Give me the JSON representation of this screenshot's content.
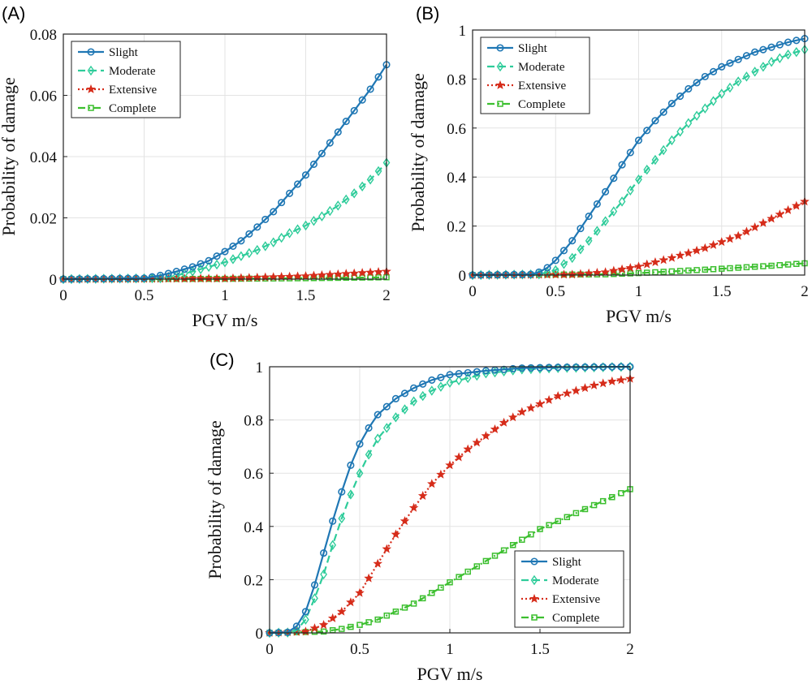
{
  "chart_data": [
    {
      "type": "line",
      "panel": "(A)",
      "xlabel": "PGV  m/s",
      "ylabel": "Probability of damage",
      "xlim": [
        0,
        2
      ],
      "ylim": [
        0,
        0.08
      ],
      "xticks": [
        "0",
        "0.5",
        "1",
        "1.5",
        "2"
      ],
      "yticks": [
        "0",
        "0.02",
        "0.04",
        "0.06",
        "0.08"
      ],
      "grid": true,
      "legend_position": "top-left",
      "series": [
        {
          "name": "Slight",
          "color": "#1f77b4",
          "marker": "circle",
          "line": "solid",
          "points": [
            [
              0,
              0
            ],
            [
              0.5,
              0.0003
            ],
            [
              0.6,
              0.0012
            ],
            [
              0.7,
              0.0025
            ],
            [
              0.8,
              0.004
            ],
            [
              0.9,
              0.006
            ],
            [
              1.0,
              0.009
            ],
            [
              1.1,
              0.0125
            ],
            [
              1.2,
              0.017
            ],
            [
              1.3,
              0.022
            ],
            [
              1.4,
              0.028
            ],
            [
              1.5,
              0.034
            ],
            [
              1.6,
              0.041
            ],
            [
              1.7,
              0.048
            ],
            [
              1.8,
              0.055
            ],
            [
              1.9,
              0.062
            ],
            [
              2.0,
              0.07
            ]
          ]
        },
        {
          "name": "Moderate",
          "color": "#2ecc9a",
          "marker": "diamond",
          "line": "dashed",
          "points": [
            [
              0,
              0
            ],
            [
              0.6,
              0.0003
            ],
            [
              0.7,
              0.0012
            ],
            [
              0.8,
              0.0025
            ],
            [
              0.9,
              0.004
            ],
            [
              1.0,
              0.0055
            ],
            [
              1.1,
              0.0075
            ],
            [
              1.2,
              0.0095
            ],
            [
              1.3,
              0.012
            ],
            [
              1.4,
              0.015
            ],
            [
              1.5,
              0.0175
            ],
            [
              1.6,
              0.0205
            ],
            [
              1.7,
              0.024
            ],
            [
              1.8,
              0.028
            ],
            [
              1.9,
              0.0325
            ],
            [
              2.0,
              0.038
            ]
          ]
        },
        {
          "name": "Extensive",
          "color": "#d62c1a",
          "marker": "star",
          "line": "dotted",
          "points": [
            [
              0,
              0
            ],
            [
              1.0,
              0.0002
            ],
            [
              1.5,
              0.001
            ],
            [
              2.0,
              0.0025
            ]
          ]
        },
        {
          "name": "Complete",
          "color": "#3cbf2f",
          "marker": "square",
          "line": "dashdot",
          "points": [
            [
              0,
              0
            ],
            [
              1.0,
              0.0001
            ],
            [
              1.5,
              0.0003
            ],
            [
              2.0,
              0.0006
            ]
          ]
        }
      ]
    },
    {
      "type": "line",
      "panel": "(B)",
      "xlabel": "PGV  m/s",
      "ylabel": "Probability of damage",
      "xlim": [
        0,
        2
      ],
      "ylim": [
        0,
        1
      ],
      "xticks": [
        "0",
        "0.5",
        "1",
        "1.5",
        "2"
      ],
      "yticks": [
        "0",
        "0.2",
        "0.4",
        "0.6",
        "0.8",
        "1"
      ],
      "grid": true,
      "legend_position": "top-left",
      "series": [
        {
          "name": "Slight",
          "color": "#1f77b4",
          "marker": "circle",
          "line": "solid",
          "points": [
            [
              0,
              0
            ],
            [
              0.35,
              0.003
            ],
            [
              0.4,
              0.012
            ],
            [
              0.45,
              0.03
            ],
            [
              0.5,
              0.06
            ],
            [
              0.55,
              0.1
            ],
            [
              0.6,
              0.14
            ],
            [
              0.65,
              0.19
            ],
            [
              0.7,
              0.24
            ],
            [
              0.75,
              0.29
            ],
            [
              0.8,
              0.34
            ],
            [
              0.9,
              0.45
            ],
            [
              1.0,
              0.55
            ],
            [
              1.1,
              0.63
            ],
            [
              1.2,
              0.7
            ],
            [
              1.3,
              0.76
            ],
            [
              1.4,
              0.81
            ],
            [
              1.5,
              0.85
            ],
            [
              1.6,
              0.88
            ],
            [
              1.7,
              0.91
            ],
            [
              1.8,
              0.93
            ],
            [
              1.9,
              0.95
            ],
            [
              2.0,
              0.965
            ]
          ]
        },
        {
          "name": "Moderate",
          "color": "#2ecc9a",
          "marker": "diamond",
          "line": "dashed",
          "points": [
            [
              0,
              0
            ],
            [
              0.4,
              0.003
            ],
            [
              0.5,
              0.02
            ],
            [
              0.6,
              0.07
            ],
            [
              0.7,
              0.14
            ],
            [
              0.8,
              0.22
            ],
            [
              0.9,
              0.3
            ],
            [
              1.0,
              0.39
            ],
            [
              1.1,
              0.47
            ],
            [
              1.2,
              0.55
            ],
            [
              1.3,
              0.62
            ],
            [
              1.4,
              0.68
            ],
            [
              1.5,
              0.74
            ],
            [
              1.6,
              0.79
            ],
            [
              1.7,
              0.83
            ],
            [
              1.8,
              0.87
            ],
            [
              1.9,
              0.9
            ],
            [
              2.0,
              0.92
            ]
          ]
        },
        {
          "name": "Extensive",
          "color": "#d62c1a",
          "marker": "star",
          "line": "dotted",
          "points": [
            [
              0,
              0
            ],
            [
              0.6,
              0.002
            ],
            [
              0.8,
              0.012
            ],
            [
              1.0,
              0.035
            ],
            [
              1.2,
              0.07
            ],
            [
              1.4,
              0.11
            ],
            [
              1.6,
              0.16
            ],
            [
              1.8,
              0.23
            ],
            [
              2.0,
              0.3
            ]
          ]
        },
        {
          "name": "Complete",
          "color": "#3cbf2f",
          "marker": "square",
          "line": "dashdot",
          "points": [
            [
              0,
              0
            ],
            [
              0.8,
              0.003
            ],
            [
              1.0,
              0.008
            ],
            [
              1.2,
              0.015
            ],
            [
              1.4,
              0.022
            ],
            [
              1.6,
              0.03
            ],
            [
              1.8,
              0.038
            ],
            [
              2.0,
              0.048
            ]
          ]
        }
      ]
    },
    {
      "type": "line",
      "panel": "(C)",
      "xlabel": "PGV  m/s",
      "ylabel": "Probability of damage",
      "xlim": [
        0,
        2
      ],
      "ylim": [
        0,
        1
      ],
      "xticks": [
        "0",
        "0.5",
        "1",
        "1.5",
        "2"
      ],
      "yticks": [
        "0",
        "0.2",
        "0.4",
        "0.6",
        "0.8",
        "1"
      ],
      "grid": true,
      "legend_position": "bottom-right",
      "series": [
        {
          "name": "Slight",
          "color": "#1f77b4",
          "marker": "circle",
          "line": "solid",
          "points": [
            [
              0,
              0
            ],
            [
              0.1,
              0.002
            ],
            [
              0.15,
              0.025
            ],
            [
              0.2,
              0.08
            ],
            [
              0.25,
              0.18
            ],
            [
              0.3,
              0.3
            ],
            [
              0.35,
              0.42
            ],
            [
              0.4,
              0.53
            ],
            [
              0.45,
              0.63
            ],
            [
              0.5,
              0.71
            ],
            [
              0.55,
              0.77
            ],
            [
              0.6,
              0.82
            ],
            [
              0.7,
              0.88
            ],
            [
              0.8,
              0.92
            ],
            [
              0.9,
              0.95
            ],
            [
              1.0,
              0.97
            ],
            [
              1.2,
              0.985
            ],
            [
              1.4,
              0.995
            ],
            [
              1.6,
              0.998
            ],
            [
              2.0,
              1.0
            ]
          ]
        },
        {
          "name": "Moderate",
          "color": "#2ecc9a",
          "marker": "diamond",
          "line": "dashed",
          "points": [
            [
              0,
              0
            ],
            [
              0.1,
              0.001
            ],
            [
              0.15,
              0.01
            ],
            [
              0.2,
              0.05
            ],
            [
              0.25,
              0.13
            ],
            [
              0.3,
              0.22
            ],
            [
              0.35,
              0.33
            ],
            [
              0.4,
              0.43
            ],
            [
              0.45,
              0.52
            ],
            [
              0.5,
              0.6
            ],
            [
              0.55,
              0.67
            ],
            [
              0.6,
              0.73
            ],
            [
              0.7,
              0.81
            ],
            [
              0.8,
              0.87
            ],
            [
              0.9,
              0.91
            ],
            [
              1.0,
              0.94
            ],
            [
              1.2,
              0.975
            ],
            [
              1.4,
              0.99
            ],
            [
              1.6,
              0.995
            ],
            [
              2.0,
              1.0
            ]
          ]
        },
        {
          "name": "Extensive",
          "color": "#d62c1a",
          "marker": "star",
          "line": "dotted",
          "points": [
            [
              0,
              0
            ],
            [
              0.2,
              0.005
            ],
            [
              0.3,
              0.03
            ],
            [
              0.4,
              0.08
            ],
            [
              0.5,
              0.15
            ],
            [
              0.6,
              0.26
            ],
            [
              0.7,
              0.37
            ],
            [
              0.8,
              0.47
            ],
            [
              0.9,
              0.56
            ],
            [
              1.0,
              0.63
            ],
            [
              1.1,
              0.69
            ],
            [
              1.2,
              0.74
            ],
            [
              1.3,
              0.79
            ],
            [
              1.4,
              0.83
            ],
            [
              1.5,
              0.86
            ],
            [
              1.6,
              0.89
            ],
            [
              1.7,
              0.91
            ],
            [
              1.8,
              0.93
            ],
            [
              1.9,
              0.945
            ],
            [
              2.0,
              0.955
            ]
          ]
        },
        {
          "name": "Complete",
          "color": "#3cbf2f",
          "marker": "square",
          "line": "dashdot",
          "points": [
            [
              0,
              0
            ],
            [
              0.3,
              0.005
            ],
            [
              0.4,
              0.015
            ],
            [
              0.5,
              0.03
            ],
            [
              0.6,
              0.05
            ],
            [
              0.7,
              0.08
            ],
            [
              0.8,
              0.11
            ],
            [
              0.9,
              0.15
            ],
            [
              1.0,
              0.19
            ],
            [
              1.1,
              0.23
            ],
            [
              1.2,
              0.27
            ],
            [
              1.3,
              0.31
            ],
            [
              1.4,
              0.35
            ],
            [
              1.5,
              0.39
            ],
            [
              1.6,
              0.42
            ],
            [
              1.7,
              0.45
            ],
            [
              1.8,
              0.48
            ],
            [
              1.9,
              0.51
            ],
            [
              2.0,
              0.54
            ]
          ]
        }
      ]
    }
  ]
}
